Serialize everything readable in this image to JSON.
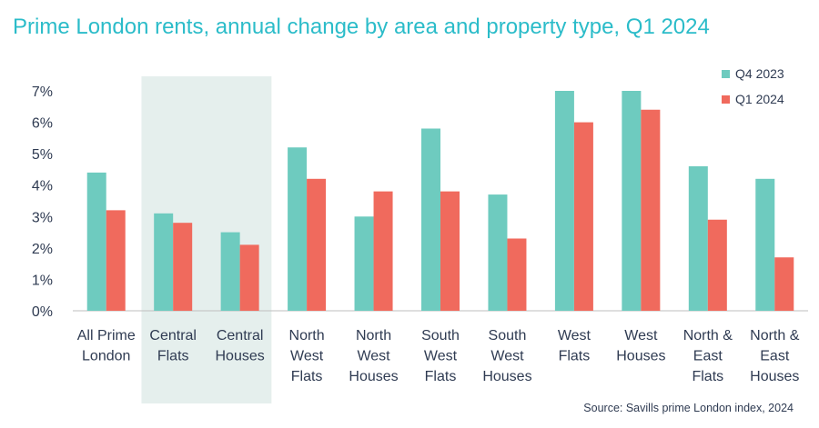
{
  "title": "Prime London rents, annual change by area and property type, Q1 2024",
  "source": "Source: Savills prime London index, 2024",
  "colors": {
    "q4_2023": "#6ecbbf",
    "q1_2024": "#f06a5d",
    "highlight_band": "#e5efed",
    "axis": "#bfbfbf",
    "text": "#2f3b52",
    "title": "#2bbcc9"
  },
  "chart_data": {
    "type": "bar",
    "categories": [
      [
        "All Prime",
        "London"
      ],
      [
        "Central",
        "Flats"
      ],
      [
        "Central",
        "Houses"
      ],
      [
        "North",
        "West",
        "Flats"
      ],
      [
        "North",
        "West",
        "Houses"
      ],
      [
        "South",
        "West",
        "Flats"
      ],
      [
        "South",
        "West",
        "Houses"
      ],
      [
        "West",
        "Flats"
      ],
      [
        "West",
        "Houses"
      ],
      [
        "North &",
        "East",
        "Flats"
      ],
      [
        "North &",
        "East",
        "Houses"
      ]
    ],
    "series": [
      {
        "name": "Q4 2023",
        "values": [
          4.4,
          3.1,
          2.5,
          5.2,
          3.0,
          5.8,
          3.7,
          7.0,
          7.0,
          4.6,
          4.2
        ]
      },
      {
        "name": "Q1 2024",
        "values": [
          3.2,
          2.8,
          2.1,
          4.2,
          3.8,
          3.8,
          2.3,
          6.0,
          6.4,
          2.9,
          1.7
        ]
      }
    ],
    "ylim": [
      0,
      7
    ],
    "yticks": [
      "0%",
      "1%",
      "2%",
      "3%",
      "4%",
      "5%",
      "6%",
      "7%"
    ],
    "highlighted_categories": [
      "Central Flats",
      "Central Houses"
    ],
    "legend_position": "top-right",
    "grid": false
  }
}
